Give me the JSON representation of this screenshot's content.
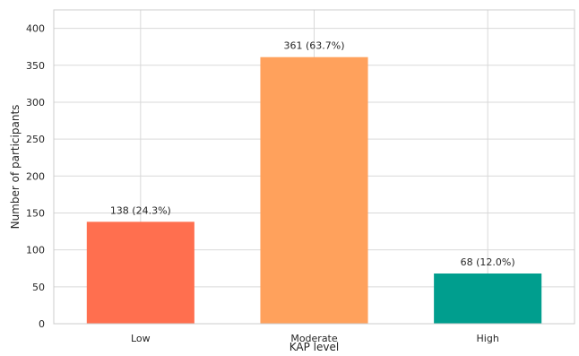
{
  "chart_data": {
    "type": "bar",
    "title": "",
    "xlabel": "KAP level",
    "ylabel": "Number of participants",
    "categories": [
      "Low",
      "Moderate",
      "High"
    ],
    "values": [
      138,
      361,
      68
    ],
    "data_labels": [
      "138 (24.3%)",
      "361 (63.7%)",
      "68 (12.0%)"
    ],
    "colors": [
      "#ff6f4f",
      "#ffa15c",
      "#009e8e"
    ],
    "ylim": [
      0,
      425
    ],
    "yticks": [
      0,
      50,
      100,
      150,
      200,
      250,
      300,
      350,
      400
    ],
    "grid": true,
    "legend": "none"
  }
}
